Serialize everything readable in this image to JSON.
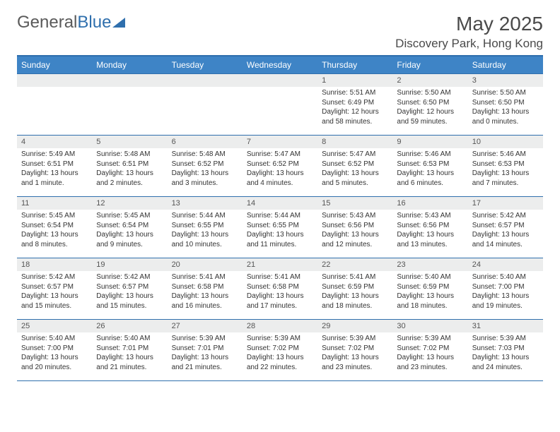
{
  "logo": {
    "text_gray": "General",
    "text_blue": "Blue"
  },
  "title": {
    "month": "May 2025",
    "location": "Discovery Park, Hong Kong"
  },
  "colors": {
    "header_bg": "#3e84c6",
    "header_text": "#ffffff",
    "rule": "#2f6fad",
    "daynum_bg": "#eceded",
    "body_text": "#333333",
    "logo_gray": "#5a5a5a",
    "logo_blue": "#2f6fad"
  },
  "day_headers": [
    "Sunday",
    "Monday",
    "Tuesday",
    "Wednesday",
    "Thursday",
    "Friday",
    "Saturday"
  ],
  "weeks": [
    [
      {
        "n": "",
        "sr": "",
        "ss": "",
        "dl": ""
      },
      {
        "n": "",
        "sr": "",
        "ss": "",
        "dl": ""
      },
      {
        "n": "",
        "sr": "",
        "ss": "",
        "dl": ""
      },
      {
        "n": "",
        "sr": "",
        "ss": "",
        "dl": ""
      },
      {
        "n": "1",
        "sr": "Sunrise: 5:51 AM",
        "ss": "Sunset: 6:49 PM",
        "dl": "Daylight: 12 hours and 58 minutes."
      },
      {
        "n": "2",
        "sr": "Sunrise: 5:50 AM",
        "ss": "Sunset: 6:50 PM",
        "dl": "Daylight: 12 hours and 59 minutes."
      },
      {
        "n": "3",
        "sr": "Sunrise: 5:50 AM",
        "ss": "Sunset: 6:50 PM",
        "dl": "Daylight: 13 hours and 0 minutes."
      }
    ],
    [
      {
        "n": "4",
        "sr": "Sunrise: 5:49 AM",
        "ss": "Sunset: 6:51 PM",
        "dl": "Daylight: 13 hours and 1 minute."
      },
      {
        "n": "5",
        "sr": "Sunrise: 5:48 AM",
        "ss": "Sunset: 6:51 PM",
        "dl": "Daylight: 13 hours and 2 minutes."
      },
      {
        "n": "6",
        "sr": "Sunrise: 5:48 AM",
        "ss": "Sunset: 6:52 PM",
        "dl": "Daylight: 13 hours and 3 minutes."
      },
      {
        "n": "7",
        "sr": "Sunrise: 5:47 AM",
        "ss": "Sunset: 6:52 PM",
        "dl": "Daylight: 13 hours and 4 minutes."
      },
      {
        "n": "8",
        "sr": "Sunrise: 5:47 AM",
        "ss": "Sunset: 6:52 PM",
        "dl": "Daylight: 13 hours and 5 minutes."
      },
      {
        "n": "9",
        "sr": "Sunrise: 5:46 AM",
        "ss": "Sunset: 6:53 PM",
        "dl": "Daylight: 13 hours and 6 minutes."
      },
      {
        "n": "10",
        "sr": "Sunrise: 5:46 AM",
        "ss": "Sunset: 6:53 PM",
        "dl": "Daylight: 13 hours and 7 minutes."
      }
    ],
    [
      {
        "n": "11",
        "sr": "Sunrise: 5:45 AM",
        "ss": "Sunset: 6:54 PM",
        "dl": "Daylight: 13 hours and 8 minutes."
      },
      {
        "n": "12",
        "sr": "Sunrise: 5:45 AM",
        "ss": "Sunset: 6:54 PM",
        "dl": "Daylight: 13 hours and 9 minutes."
      },
      {
        "n": "13",
        "sr": "Sunrise: 5:44 AM",
        "ss": "Sunset: 6:55 PM",
        "dl": "Daylight: 13 hours and 10 minutes."
      },
      {
        "n": "14",
        "sr": "Sunrise: 5:44 AM",
        "ss": "Sunset: 6:55 PM",
        "dl": "Daylight: 13 hours and 11 minutes."
      },
      {
        "n": "15",
        "sr": "Sunrise: 5:43 AM",
        "ss": "Sunset: 6:56 PM",
        "dl": "Daylight: 13 hours and 12 minutes."
      },
      {
        "n": "16",
        "sr": "Sunrise: 5:43 AM",
        "ss": "Sunset: 6:56 PM",
        "dl": "Daylight: 13 hours and 13 minutes."
      },
      {
        "n": "17",
        "sr": "Sunrise: 5:42 AM",
        "ss": "Sunset: 6:57 PM",
        "dl": "Daylight: 13 hours and 14 minutes."
      }
    ],
    [
      {
        "n": "18",
        "sr": "Sunrise: 5:42 AM",
        "ss": "Sunset: 6:57 PM",
        "dl": "Daylight: 13 hours and 15 minutes."
      },
      {
        "n": "19",
        "sr": "Sunrise: 5:42 AM",
        "ss": "Sunset: 6:57 PM",
        "dl": "Daylight: 13 hours and 15 minutes."
      },
      {
        "n": "20",
        "sr": "Sunrise: 5:41 AM",
        "ss": "Sunset: 6:58 PM",
        "dl": "Daylight: 13 hours and 16 minutes."
      },
      {
        "n": "21",
        "sr": "Sunrise: 5:41 AM",
        "ss": "Sunset: 6:58 PM",
        "dl": "Daylight: 13 hours and 17 minutes."
      },
      {
        "n": "22",
        "sr": "Sunrise: 5:41 AM",
        "ss": "Sunset: 6:59 PM",
        "dl": "Daylight: 13 hours and 18 minutes."
      },
      {
        "n": "23",
        "sr": "Sunrise: 5:40 AM",
        "ss": "Sunset: 6:59 PM",
        "dl": "Daylight: 13 hours and 18 minutes."
      },
      {
        "n": "24",
        "sr": "Sunrise: 5:40 AM",
        "ss": "Sunset: 7:00 PM",
        "dl": "Daylight: 13 hours and 19 minutes."
      }
    ],
    [
      {
        "n": "25",
        "sr": "Sunrise: 5:40 AM",
        "ss": "Sunset: 7:00 PM",
        "dl": "Daylight: 13 hours and 20 minutes."
      },
      {
        "n": "26",
        "sr": "Sunrise: 5:40 AM",
        "ss": "Sunset: 7:01 PM",
        "dl": "Daylight: 13 hours and 21 minutes."
      },
      {
        "n": "27",
        "sr": "Sunrise: 5:39 AM",
        "ss": "Sunset: 7:01 PM",
        "dl": "Daylight: 13 hours and 21 minutes."
      },
      {
        "n": "28",
        "sr": "Sunrise: 5:39 AM",
        "ss": "Sunset: 7:02 PM",
        "dl": "Daylight: 13 hours and 22 minutes."
      },
      {
        "n": "29",
        "sr": "Sunrise: 5:39 AM",
        "ss": "Sunset: 7:02 PM",
        "dl": "Daylight: 13 hours and 23 minutes."
      },
      {
        "n": "30",
        "sr": "Sunrise: 5:39 AM",
        "ss": "Sunset: 7:02 PM",
        "dl": "Daylight: 13 hours and 23 minutes."
      },
      {
        "n": "31",
        "sr": "Sunrise: 5:39 AM",
        "ss": "Sunset: 7:03 PM",
        "dl": "Daylight: 13 hours and 24 minutes."
      }
    ]
  ]
}
